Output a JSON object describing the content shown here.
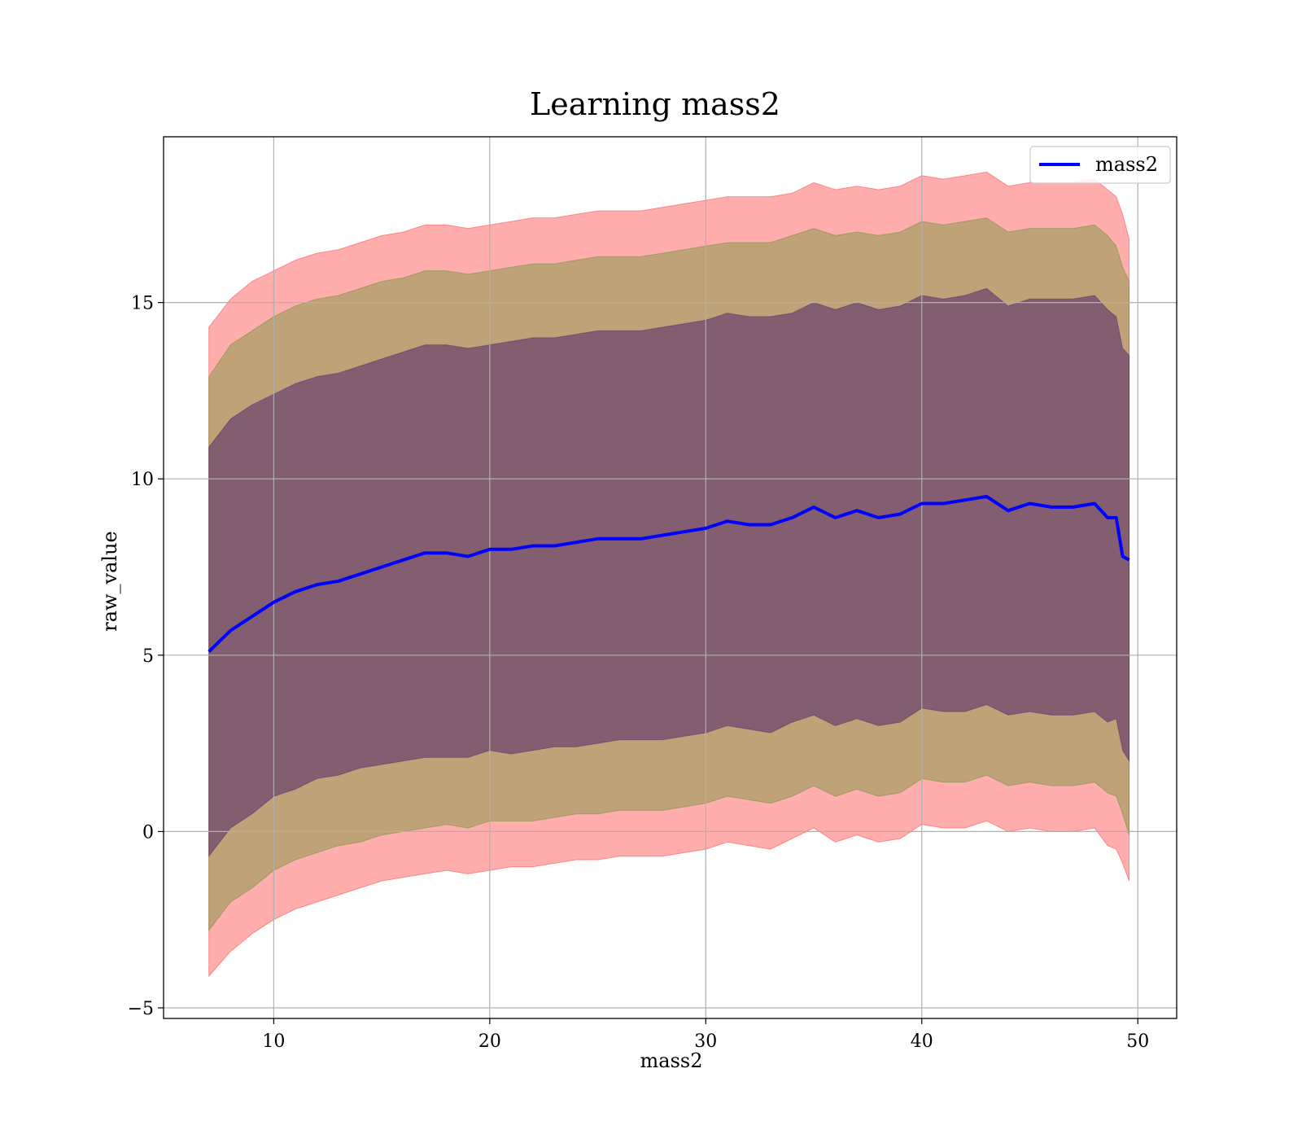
{
  "chart_data": {
    "type": "line",
    "title": "Learning mass2",
    "xlabel": "mass2",
    "ylabel": "raw_value",
    "xlim": [
      4.9,
      51.8
    ],
    "ylim": [
      -5.3,
      19.7
    ],
    "xticks": [
      10,
      20,
      30,
      40,
      50
    ],
    "yticks": [
      -5,
      0,
      5,
      10,
      15
    ],
    "xtick_labels": [
      "10",
      "20",
      "30",
      "40",
      "50"
    ],
    "ytick_labels": [
      "−5",
      "0",
      "5",
      "10",
      "15"
    ],
    "grid": true,
    "legend_position": "top-right",
    "colors": {
      "line": "#0000ff",
      "band": "#ff0000",
      "band_inner": "#3a0b68",
      "band_mid": "#2e8b00"
    },
    "x": [
      7.0,
      8.0,
      9.0,
      10.0,
      11.0,
      12.0,
      13.0,
      14.0,
      15.0,
      16.0,
      17.0,
      18.0,
      19.0,
      20.0,
      21.0,
      22.0,
      23.0,
      24.0,
      25.0,
      26.0,
      27.0,
      28.0,
      29.0,
      30.0,
      31.0,
      32.0,
      33.0,
      34.0,
      35.0,
      36.0,
      37.0,
      38.0,
      39.0,
      40.0,
      41.0,
      42.0,
      43.0,
      44.0,
      45.0,
      46.0,
      47.0,
      48.0,
      48.6,
      49.0,
      49.3,
      49.6
    ],
    "series": [
      {
        "name": "mass2",
        "values": [
          5.1,
          5.7,
          6.1,
          6.5,
          6.8,
          7.0,
          7.1,
          7.3,
          7.5,
          7.7,
          7.9,
          7.9,
          7.8,
          8.0,
          8.0,
          8.1,
          8.1,
          8.2,
          8.3,
          8.3,
          8.3,
          8.4,
          8.5,
          8.6,
          8.8,
          8.7,
          8.7,
          8.9,
          9.2,
          8.9,
          9.1,
          8.9,
          9.0,
          9.3,
          9.3,
          9.4,
          9.5,
          9.1,
          9.3,
          9.2,
          9.2,
          9.3,
          8.9,
          8.9,
          7.8,
          7.7
        ],
        "band_1sigma": {
          "lower": [
            -0.7,
            0.1,
            0.5,
            1.0,
            1.2,
            1.5,
            1.6,
            1.8,
            1.9,
            2.0,
            2.1,
            2.1,
            2.1,
            2.3,
            2.2,
            2.3,
            2.4,
            2.4,
            2.5,
            2.6,
            2.6,
            2.6,
            2.7,
            2.8,
            3.0,
            2.9,
            2.8,
            3.1,
            3.3,
            3.0,
            3.2,
            3.0,
            3.1,
            3.5,
            3.4,
            3.4,
            3.6,
            3.3,
            3.4,
            3.3,
            3.3,
            3.4,
            3.1,
            3.2,
            2.3,
            2.0
          ],
          "upper": [
            10.9,
            11.7,
            12.1,
            12.4,
            12.7,
            12.9,
            13.0,
            13.2,
            13.4,
            13.6,
            13.8,
            13.8,
            13.7,
            13.8,
            13.9,
            14.0,
            14.0,
            14.1,
            14.2,
            14.2,
            14.2,
            14.3,
            14.4,
            14.5,
            14.7,
            14.6,
            14.6,
            14.7,
            15.0,
            14.8,
            15.0,
            14.8,
            14.9,
            15.2,
            15.1,
            15.2,
            15.4,
            14.9,
            15.1,
            15.1,
            15.1,
            15.2,
            14.8,
            14.6,
            13.7,
            13.5
          ]
        },
        "band_2sigma": {
          "lower": [
            -2.8,
            -2.0,
            -1.6,
            -1.1,
            -0.8,
            -0.6,
            -0.4,
            -0.3,
            -0.1,
            0.0,
            0.1,
            0.2,
            0.1,
            0.3,
            0.3,
            0.3,
            0.4,
            0.5,
            0.5,
            0.6,
            0.6,
            0.6,
            0.7,
            0.8,
            1.0,
            0.9,
            0.8,
            1.0,
            1.3,
            1.0,
            1.2,
            1.0,
            1.1,
            1.5,
            1.4,
            1.4,
            1.6,
            1.3,
            1.4,
            1.3,
            1.3,
            1.4,
            1.1,
            1.0,
            0.5,
            -0.1
          ],
          "upper": [
            12.9,
            13.8,
            14.2,
            14.6,
            14.9,
            15.1,
            15.2,
            15.4,
            15.6,
            15.7,
            15.9,
            15.9,
            15.8,
            15.9,
            16.0,
            16.1,
            16.1,
            16.2,
            16.3,
            16.3,
            16.3,
            16.4,
            16.5,
            16.6,
            16.7,
            16.7,
            16.7,
            16.9,
            17.1,
            16.9,
            17.0,
            16.9,
            17.0,
            17.3,
            17.2,
            17.3,
            17.4,
            17.0,
            17.1,
            17.1,
            17.1,
            17.2,
            16.9,
            16.6,
            16.0,
            15.6
          ]
        },
        "band_3sigma": {
          "lower": [
            -4.1,
            -3.4,
            -2.9,
            -2.5,
            -2.2,
            -2.0,
            -1.8,
            -1.6,
            -1.4,
            -1.3,
            -1.2,
            -1.1,
            -1.2,
            -1.1,
            -1.0,
            -1.0,
            -0.9,
            -0.8,
            -0.8,
            -0.7,
            -0.7,
            -0.7,
            -0.6,
            -0.5,
            -0.3,
            -0.4,
            -0.5,
            -0.2,
            0.1,
            -0.3,
            -0.1,
            -0.3,
            -0.2,
            0.2,
            0.1,
            0.1,
            0.3,
            0.0,
            0.1,
            0.0,
            0.0,
            0.1,
            -0.4,
            -0.5,
            -0.9,
            -1.4
          ],
          "upper": [
            14.3,
            15.1,
            15.6,
            15.9,
            16.2,
            16.4,
            16.5,
            16.7,
            16.9,
            17.0,
            17.2,
            17.2,
            17.1,
            17.2,
            17.3,
            17.4,
            17.4,
            17.5,
            17.6,
            17.6,
            17.6,
            17.7,
            17.8,
            17.9,
            18.0,
            18.0,
            18.0,
            18.1,
            18.4,
            18.2,
            18.3,
            18.2,
            18.3,
            18.6,
            18.5,
            18.6,
            18.7,
            18.3,
            18.4,
            18.4,
            18.4,
            18.5,
            18.2,
            18.0,
            17.5,
            16.8
          ]
        }
      }
    ]
  }
}
